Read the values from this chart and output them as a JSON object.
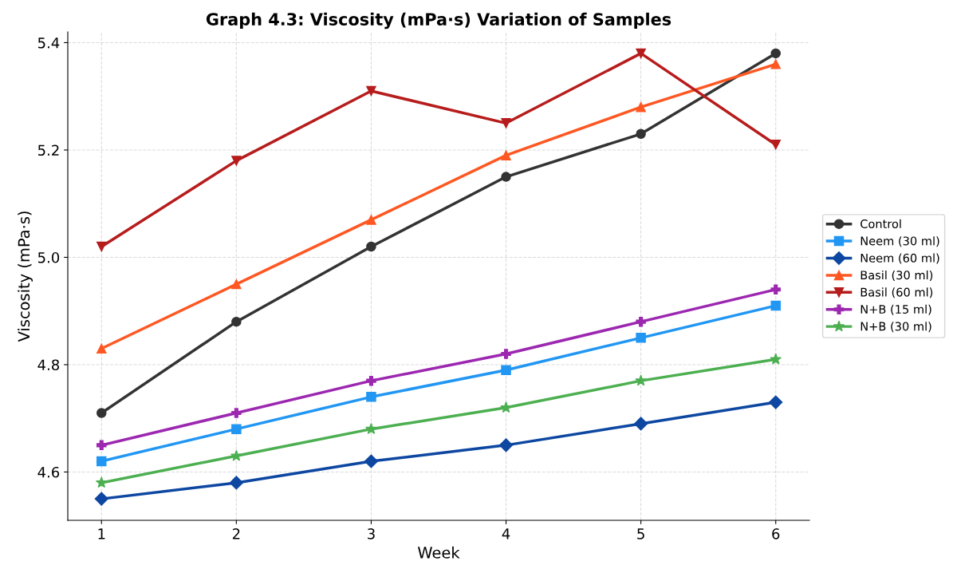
{
  "chart_data": {
    "type": "line",
    "title": "Graph 4.3: Viscosity (mPa·s) Variation of Samples",
    "xlabel": "Week",
    "ylabel": "Viscosity (mPa·s)",
    "x": [
      1,
      2,
      3,
      4,
      5,
      6
    ],
    "series": [
      {
        "name": "Control",
        "color": "#333333",
        "marker": "circle",
        "values": [
          4.71,
          4.88,
          5.02,
          5.15,
          5.23,
          5.38
        ]
      },
      {
        "name": "Neem (30 ml)",
        "color": "#2196f3",
        "marker": "square",
        "values": [
          4.62,
          4.68,
          4.74,
          4.79,
          4.85,
          4.91
        ]
      },
      {
        "name": "Neem (60 ml)",
        "color": "#0d47a1",
        "marker": "diamond",
        "values": [
          4.55,
          4.58,
          4.62,
          4.65,
          4.69,
          4.73
        ]
      },
      {
        "name": "Basil (30 ml)",
        "color": "#ff5722",
        "marker": "triangle",
        "values": [
          4.83,
          4.95,
          5.07,
          5.19,
          5.28,
          5.36
        ]
      },
      {
        "name": "Basil (60 ml)",
        "color": "#b71c1c",
        "marker": "triangle_down",
        "values": [
          5.02,
          5.18,
          5.31,
          5.25,
          5.38,
          5.21
        ]
      },
      {
        "name": "N+B (15 ml)",
        "color": "#9c27b0",
        "marker": "plus",
        "values": [
          4.65,
          4.71,
          4.77,
          4.82,
          4.88,
          4.94
        ]
      },
      {
        "name": "N+B (30 ml)",
        "color": "#4caf50",
        "marker": "star",
        "values": [
          4.58,
          4.63,
          4.68,
          4.72,
          4.77,
          4.81
        ]
      }
    ],
    "xlim": [
      0.75,
      6.25
    ],
    "xticks": [
      1,
      2,
      3,
      4,
      5,
      6
    ],
    "ylim": [
      4.51,
      5.42
    ],
    "yticks": [
      {
        "value": 4.6,
        "label": "4.6"
      },
      {
        "value": 4.8,
        "label": "4.8"
      },
      {
        "value": 5.0,
        "label": "5.0"
      },
      {
        "value": 5.2,
        "label": "5.2"
      },
      {
        "value": 5.4,
        "label": "5.4"
      }
    ],
    "grid": true,
    "legend": "right",
    "line_style": "solid"
  }
}
